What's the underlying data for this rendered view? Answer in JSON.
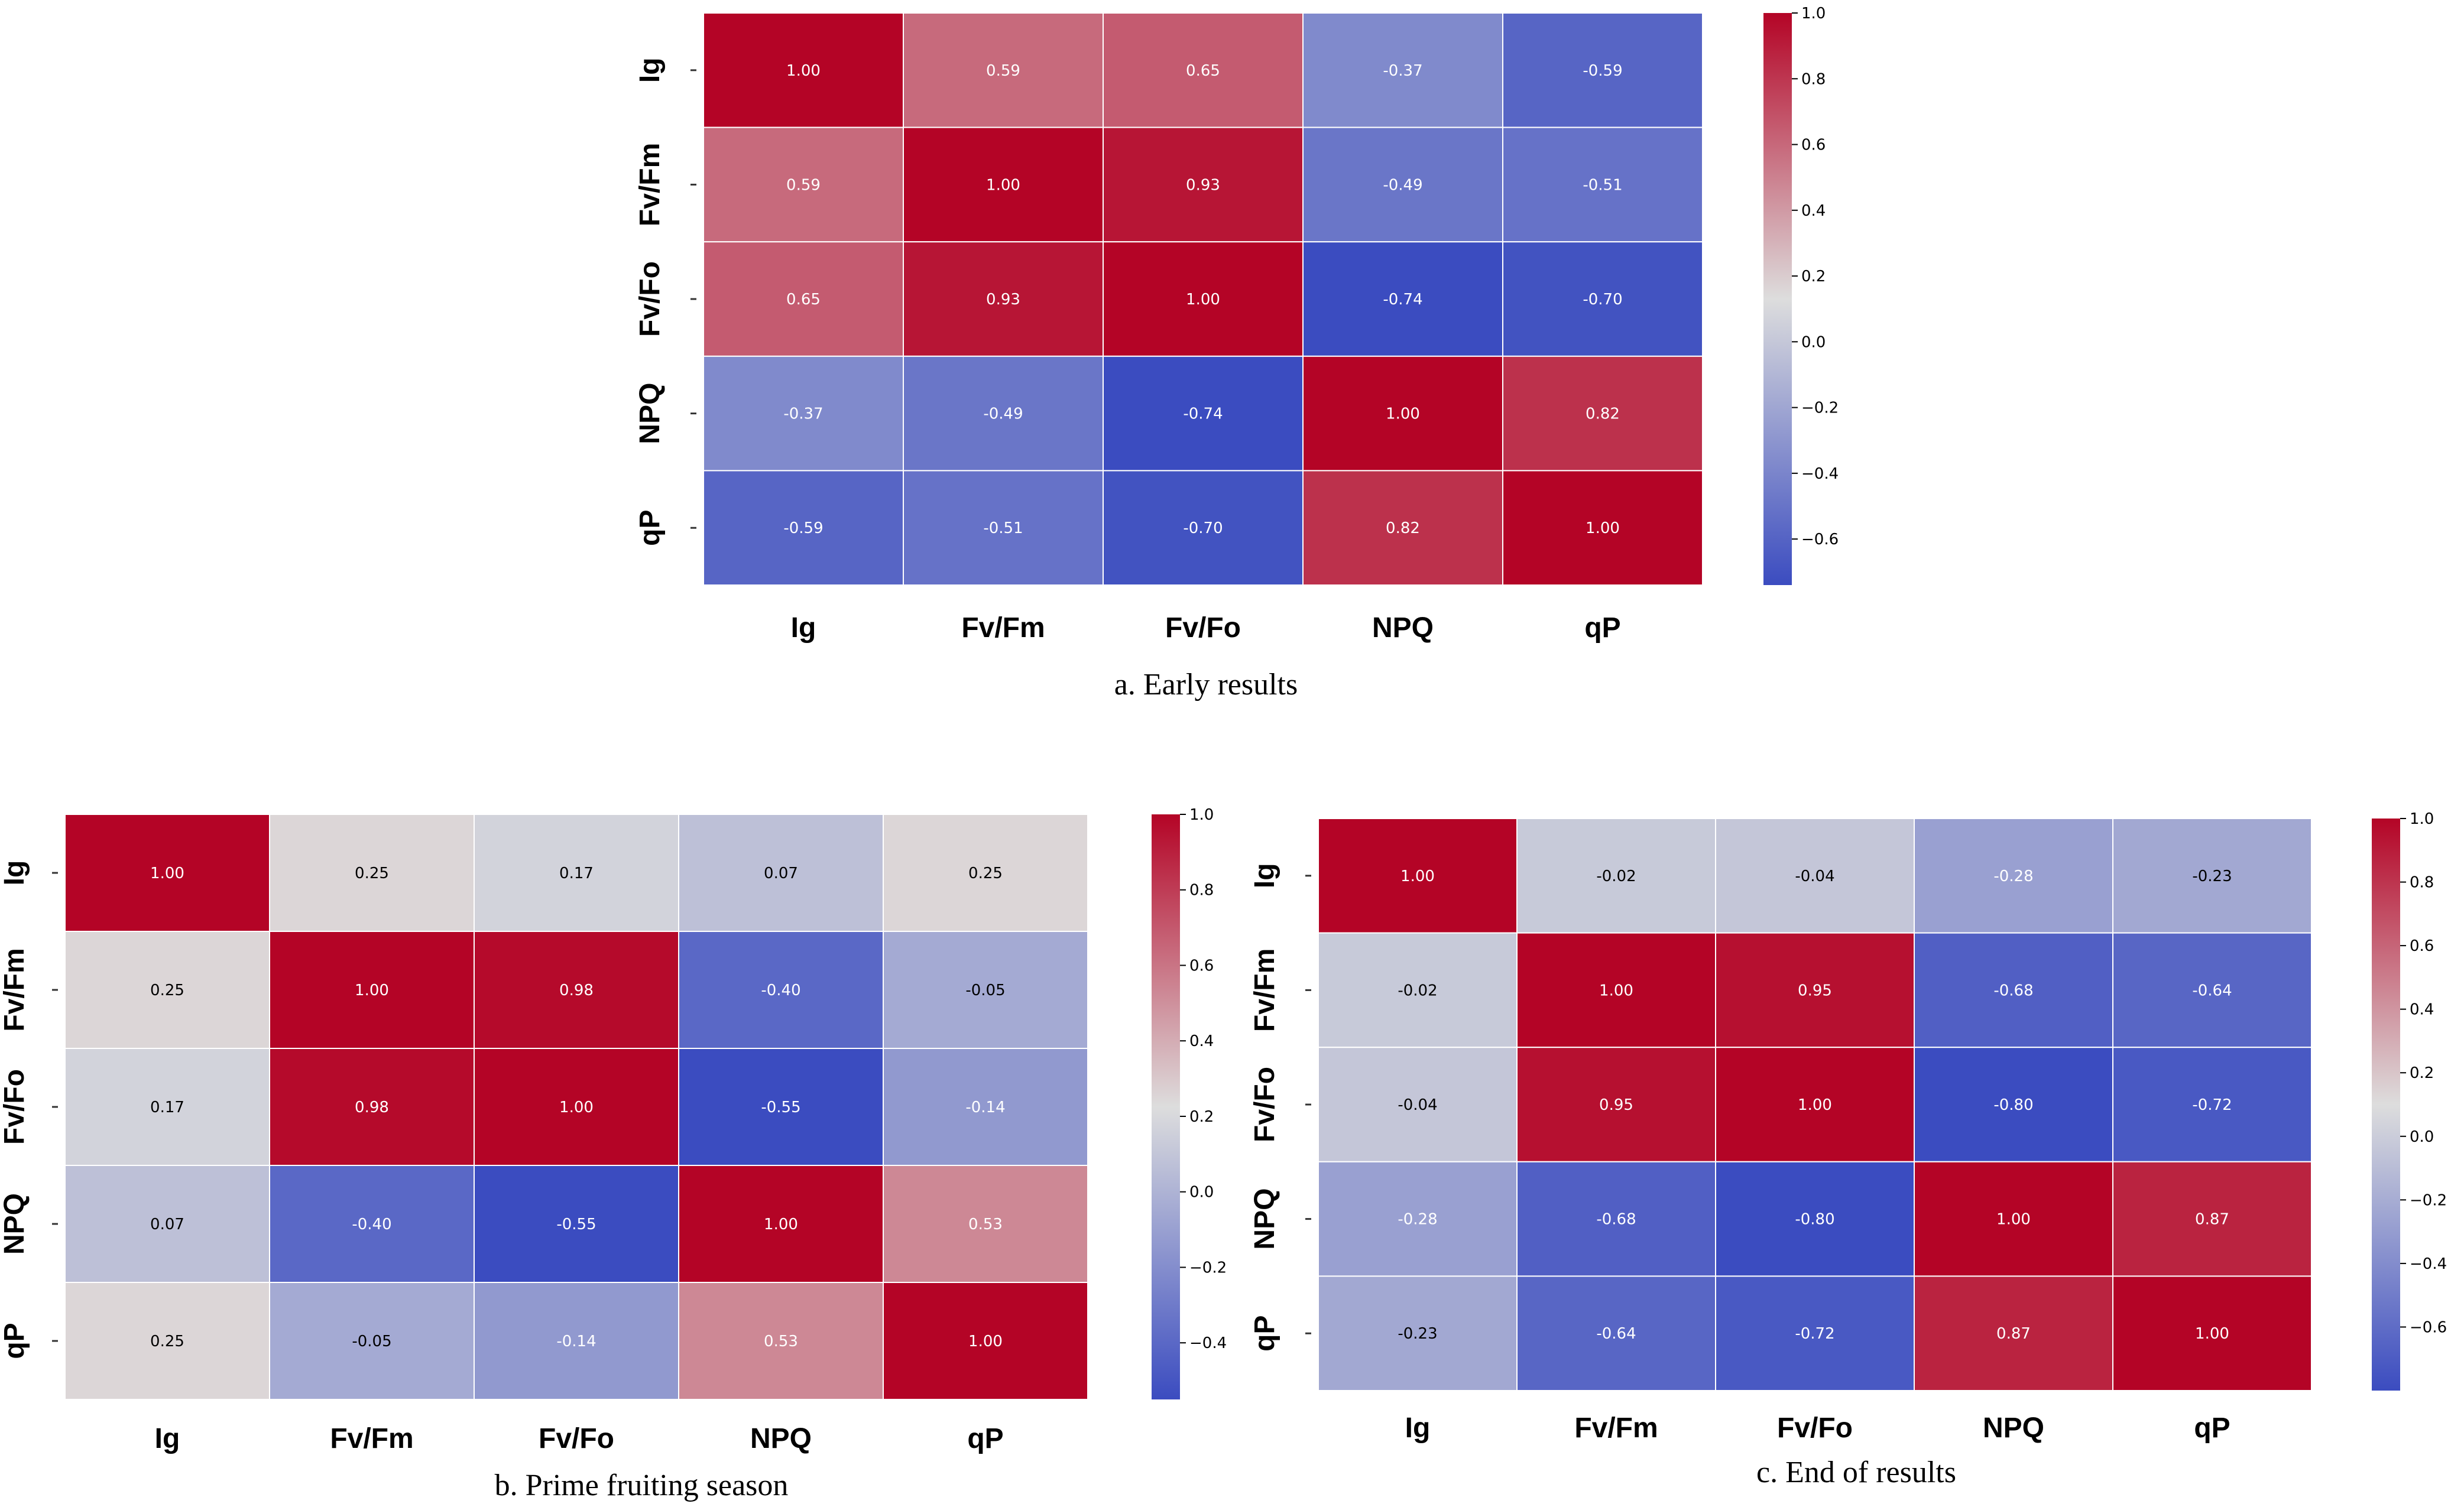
{
  "colorbar": {
    "low_color": "#3b4cc0",
    "mid_color": "#dddddd",
    "high_color": "#b40426"
  },
  "chart_data": [
    {
      "type": "heatmap",
      "caption": "a. Early results",
      "variables": [
        "Ig",
        "Fv/Fm",
        "Fv/Fo",
        "NPQ",
        "qP"
      ],
      "values": [
        [
          1.0,
          0.59,
          0.65,
          -0.37,
          -0.59
        ],
        [
          0.59,
          1.0,
          0.93,
          -0.49,
          -0.51
        ],
        [
          0.65,
          0.93,
          1.0,
          -0.74,
          -0.7
        ],
        [
          -0.37,
          -0.49,
          -0.74,
          1.0,
          0.82
        ],
        [
          -0.59,
          -0.51,
          -0.7,
          0.82,
          1.0
        ]
      ],
      "labels": [
        [
          "1.00",
          "0.59",
          "0.65",
          "-0.37",
          "-0.59"
        ],
        [
          "0.59",
          "1.00",
          "0.93",
          "-0.49",
          "-0.51"
        ],
        [
          "0.65",
          "0.93",
          "1.00",
          "-0.74",
          "-0.70"
        ],
        [
          "-0.37",
          "-0.49",
          "-0.74",
          "1.00",
          "0.82"
        ],
        [
          "-0.59",
          "-0.51",
          "-0.70",
          "0.82",
          "1.00"
        ]
      ],
      "colorbar_range": [
        -0.74,
        1.0
      ],
      "colorbar_ticks": [
        -0.6,
        -0.4,
        -0.2,
        0.0,
        0.2,
        0.4,
        0.6,
        0.8,
        1.0
      ],
      "colorbar_tick_labels": [
        "−0.6",
        "−0.4",
        "−0.2",
        "0.0",
        "0.2",
        "0.4",
        "0.6",
        "0.8",
        "1.0"
      ]
    },
    {
      "type": "heatmap",
      "caption": "b. Prime fruiting season",
      "variables": [
        "Ig",
        "Fv/Fm",
        "Fv/Fo",
        "NPQ",
        "qP"
      ],
      "values": [
        [
          1.0,
          0.25,
          0.17,
          0.07,
          0.25
        ],
        [
          0.25,
          1.0,
          0.98,
          -0.4,
          -0.05
        ],
        [
          0.17,
          0.98,
          1.0,
          -0.55,
          -0.14
        ],
        [
          0.07,
          -0.4,
          -0.55,
          1.0,
          0.53
        ],
        [
          0.25,
          -0.05,
          -0.14,
          0.53,
          1.0
        ]
      ],
      "labels": [
        [
          "1.00",
          "0.25",
          "0.17",
          "0.07",
          "0.25"
        ],
        [
          "0.25",
          "1.00",
          "0.98",
          "-0.40",
          "-0.05"
        ],
        [
          "0.17",
          "0.98",
          "1.00",
          "-0.55",
          "-0.14"
        ],
        [
          "0.07",
          "-0.40",
          "-0.55",
          "1.00",
          "0.53"
        ],
        [
          "0.25",
          "-0.05",
          "-0.14",
          "0.53",
          "1.00"
        ]
      ],
      "colorbar_range": [
        -0.55,
        1.0
      ],
      "colorbar_ticks": [
        -0.4,
        -0.2,
        0.0,
        0.2,
        0.4,
        0.6,
        0.8,
        1.0
      ],
      "colorbar_tick_labels": [
        "−0.4",
        "−0.2",
        "0.0",
        "0.2",
        "0.4",
        "0.6",
        "0.8",
        "1.0"
      ]
    },
    {
      "type": "heatmap",
      "caption": "c. End of results",
      "variables": [
        "Ig",
        "Fv/Fm",
        "Fv/Fo",
        "NPQ",
        "qP"
      ],
      "values": [
        [
          1.0,
          -0.02,
          -0.04,
          -0.28,
          -0.23
        ],
        [
          -0.02,
          1.0,
          0.95,
          -0.68,
          -0.64
        ],
        [
          -0.04,
          0.95,
          1.0,
          -0.8,
          -0.72
        ],
        [
          -0.28,
          -0.68,
          -0.8,
          1.0,
          0.87
        ],
        [
          -0.23,
          -0.64,
          -0.72,
          0.87,
          1.0
        ]
      ],
      "labels": [
        [
          "1.00",
          "-0.02",
          "-0.04",
          "-0.28",
          "-0.23"
        ],
        [
          "-0.02",
          "1.00",
          "0.95",
          "-0.68",
          "-0.64"
        ],
        [
          "-0.04",
          "0.95",
          "1.00",
          "-0.80",
          "-0.72"
        ],
        [
          "-0.28",
          "-0.68",
          "-0.80",
          "1.00",
          "0.87"
        ],
        [
          "-0.23",
          "-0.64",
          "-0.72",
          "0.87",
          "1.00"
        ]
      ],
      "colorbar_range": [
        -0.8,
        1.0
      ],
      "colorbar_ticks": [
        -0.6,
        -0.4,
        -0.2,
        0.0,
        0.2,
        0.4,
        0.6,
        0.8,
        1.0
      ],
      "colorbar_tick_labels": [
        "−0.6",
        "−0.4",
        "−0.2",
        "0.0",
        "0.2",
        "0.4",
        "0.6",
        "0.8",
        "1.0"
      ]
    }
  ]
}
